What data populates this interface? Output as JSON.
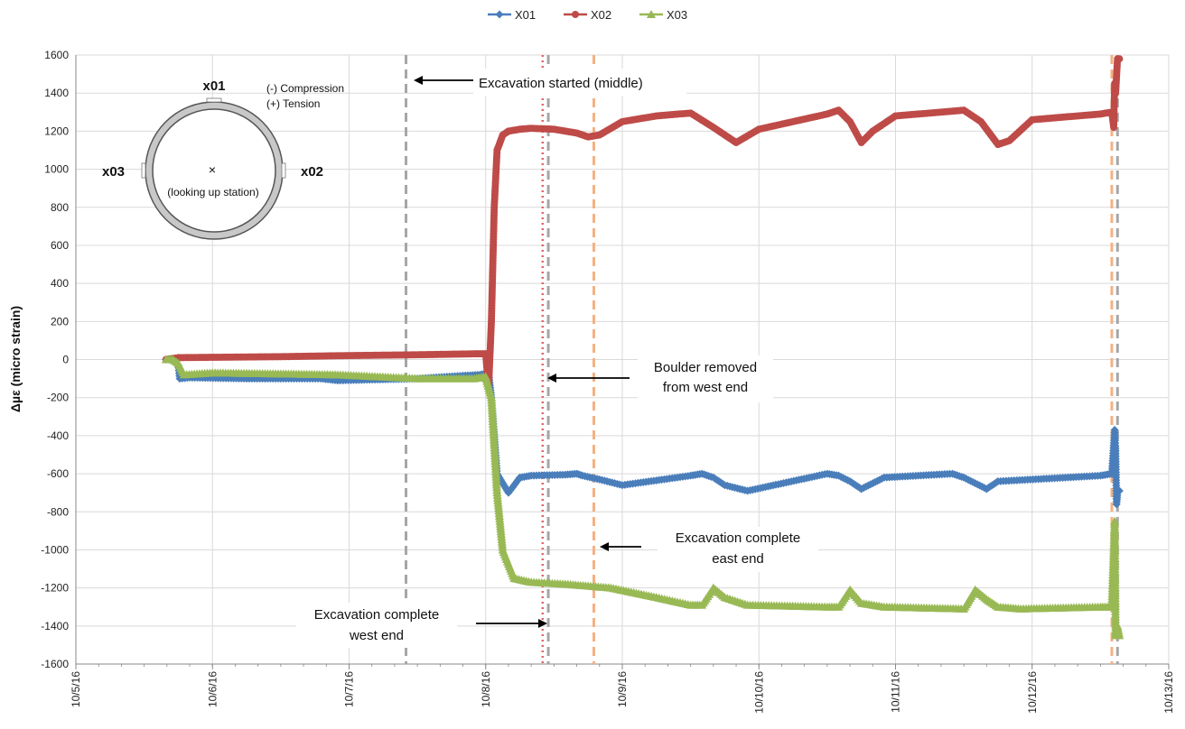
{
  "chart_data": {
    "type": "line",
    "ylabel": "Δµε (micro strain)",
    "ylim": [
      -1600,
      1600
    ],
    "yticks": [
      -1600,
      -1400,
      -1200,
      -1000,
      -800,
      -600,
      -400,
      -200,
      0,
      200,
      400,
      600,
      800,
      1000,
      1200,
      1400,
      1600
    ],
    "xlim_days": [
      0,
      8
    ],
    "xtick_labels": [
      "10/5/16",
      "10/6/16",
      "10/7/16",
      "10/8/16",
      "10/9/16",
      "10/10/16",
      "10/11/16",
      "10/12/16",
      "10/13/16"
    ],
    "grid": true,
    "legend_position": "top-center",
    "colors": {
      "X01": "#4a7ebb",
      "X02": "#be4b48",
      "X03": "#98b954"
    },
    "series": [
      {
        "name": "X01",
        "marker": "diamond",
        "x": [
          "10/5/16 15:50",
          "10/5/16 17:00",
          "10/5/16 18:00",
          "10/5/16 18:15",
          "10/5/16 20:00",
          "10/6/16 06:00",
          "10/6/16 12:00",
          "10/6/16 19:00",
          "10/6/16 22:00",
          "10/7/16 12:00",
          "10/7/16 20:00",
          "10/7/16 23:00",
          "10/8/16 00:30",
          "10/8/16 01:00",
          "10/8/16 02:00",
          "10/8/16 04:00",
          "10/8/16 06:00",
          "10/8/16 08:00",
          "10/8/16 14:00",
          "10/8/16 16:00",
          "10/8/16 17:00",
          "10/8/16 20:00",
          "10/9/16 00:00",
          "10/9/16 12:00",
          "10/9/16 14:00",
          "10/9/16 16:00",
          "10/9/16 18:00",
          "10/9/16 22:00",
          "10/10/16 12:00",
          "10/10/16 14:00",
          "10/10/16 16:00",
          "10/10/16 18:00",
          "10/10/16 22:00",
          "10/11/16 10:00",
          "10/11/16 12:00",
          "10/11/16 14:00",
          "10/11/16 16:00",
          "10/11/16 18:00",
          "10/12/16 12:00",
          "10/12/16 14:00",
          "10/12/16 14:30",
          "10/12/16 14:40",
          "10/12/16 14:50",
          "10/12/16 15:00",
          "10/12/16 15:20"
        ],
        "y": [
          0,
          0,
          -30,
          -100,
          -95,
          -100,
          -100,
          -100,
          -110,
          -100,
          -85,
          -80,
          -70,
          -200,
          -600,
          -700,
          -620,
          -610,
          -605,
          -600,
          -610,
          -630,
          -660,
          -610,
          -600,
          -620,
          -660,
          -690,
          -600,
          -610,
          -640,
          -680,
          -620,
          -600,
          -620,
          -650,
          -680,
          -640,
          -610,
          -600,
          -370,
          -480,
          -760,
          -700,
          -690
        ]
      },
      {
        "name": "X02",
        "marker": "circle",
        "x": [
          "10/5/16 15:50",
          "10/5/16 18:00",
          "10/6/16 12:00",
          "10/6/16 22:00",
          "10/7/16 12:00",
          "10/7/16 22:00",
          "10/8/16 00:00",
          "10/8/16 00:30",
          "10/8/16 01:00",
          "10/8/16 01:30",
          "10/8/16 02:00",
          "10/8/16 03:00",
          "10/8/16 04:00",
          "10/8/16 06:00",
          "10/8/16 08:00",
          "10/8/16 12:00",
          "10/8/16 16:00",
          "10/8/16 18:00",
          "10/8/16 20:00",
          "10/9/16 00:00",
          "10/9/16 06:00",
          "10/9/16 12:00",
          "10/9/16 16:00",
          "10/9/16 20:00",
          "10/10/16 00:00",
          "10/10/16 12:00",
          "10/10/16 14:00",
          "10/10/16 16:00",
          "10/10/16 18:00",
          "10/10/16 20:00",
          "10/11/16 00:00",
          "10/11/16 12:00",
          "10/11/16 15:00",
          "10/11/16 18:00",
          "10/11/16 20:00",
          "10/12/16 00:00",
          "10/12/16 12:00",
          "10/12/16 14:00",
          "10/12/16 14:20",
          "10/12/16 14:30",
          "10/12/16 14:40",
          "10/12/16 15:00",
          "10/12/16 15:20"
        ],
        "y": [
          0,
          10,
          15,
          20,
          25,
          30,
          30,
          -150,
          200,
          800,
          1100,
          1180,
          1200,
          1210,
          1215,
          1210,
          1190,
          1170,
          1180,
          1250,
          1280,
          1295,
          1220,
          1140,
          1210,
          1290,
          1310,
          1250,
          1140,
          1200,
          1280,
          1310,
          1250,
          1130,
          1150,
          1260,
          1290,
          1300,
          1220,
          1450,
          1400,
          1580,
          1580
        ]
      },
      {
        "name": "X03",
        "marker": "triangle",
        "x": [
          "10/5/16 15:50",
          "10/5/16 17:00",
          "10/5/16 18:00",
          "10/5/16 19:00",
          "10/6/16 00:00",
          "10/6/16 12:00",
          "10/6/16 22:00",
          "10/7/16 12:00",
          "10/7/16 22:00",
          "10/8/16 00:00",
          "10/8/16 01:00",
          "10/8/16 02:00",
          "10/8/16 03:00",
          "10/8/16 05:00",
          "10/8/16 08:00",
          "10/8/16 14:00",
          "10/8/16 18:00",
          "10/8/16 22:00",
          "10/9/16 06:00",
          "10/9/16 12:00",
          "10/9/16 14:00",
          "10/9/16 16:00",
          "10/9/16 18:00",
          "10/9/16 22:00",
          "10/10/16 12:00",
          "10/10/16 14:00",
          "10/10/16 16:00",
          "10/10/16 18:00",
          "10/10/16 22:00",
          "10/11/16 12:00",
          "10/11/16 14:00",
          "10/11/16 16:00",
          "10/11/16 18:00",
          "10/11/16 22:00",
          "10/12/16 12:00",
          "10/12/16 14:00",
          "10/12/16 14:30",
          "10/12/16 14:40",
          "10/12/16 15:00",
          "10/12/16 15:20"
        ],
        "y": [
          0,
          0,
          -20,
          -80,
          -70,
          -75,
          -80,
          -100,
          -100,
          -90,
          -200,
          -700,
          -1000,
          -1150,
          -1170,
          -1180,
          -1190,
          -1200,
          -1250,
          -1290,
          -1290,
          -1200,
          -1250,
          -1290,
          -1300,
          -1300,
          -1210,
          -1280,
          -1300,
          -1310,
          -1210,
          -1260,
          -1300,
          -1310,
          -1300,
          -1300,
          -850,
          -1450,
          -1400,
          -1450
        ]
      }
    ],
    "event_lines": [
      {
        "x": "10/7/16 10:00",
        "color": "#a6a6a6",
        "style": "dashed"
      },
      {
        "x": "10/8/16 10:00",
        "color": "#e06666",
        "style": "dotted"
      },
      {
        "x": "10/8/16 11:00",
        "color": "#a6a6a6",
        "style": "dashed"
      },
      {
        "x": "10/8/16 19:00",
        "color": "#f4b183",
        "style": "dashed"
      },
      {
        "x": "10/12/16 14:00",
        "color": "#f4b183",
        "style": "dashed"
      },
      {
        "x": "10/12/16 15:00",
        "color": "#a6a6a6",
        "style": "dashed"
      }
    ],
    "annotations": [
      {
        "lines": [
          "Excavation started (middle)"
        ]
      },
      {
        "lines": [
          "Boulder removed",
          "from west end"
        ]
      },
      {
        "lines": [
          "Excavation complete",
          "east end"
        ]
      },
      {
        "lines": [
          "Excavation complete",
          "west end"
        ]
      }
    ],
    "inset": {
      "top_label": "x01",
      "right_label": "x02",
      "left_label": "x03",
      "center_text": "(looking up station)",
      "center_mark": "×",
      "legend_lines": [
        "(-) Compression",
        "(+) Tension"
      ]
    }
  }
}
